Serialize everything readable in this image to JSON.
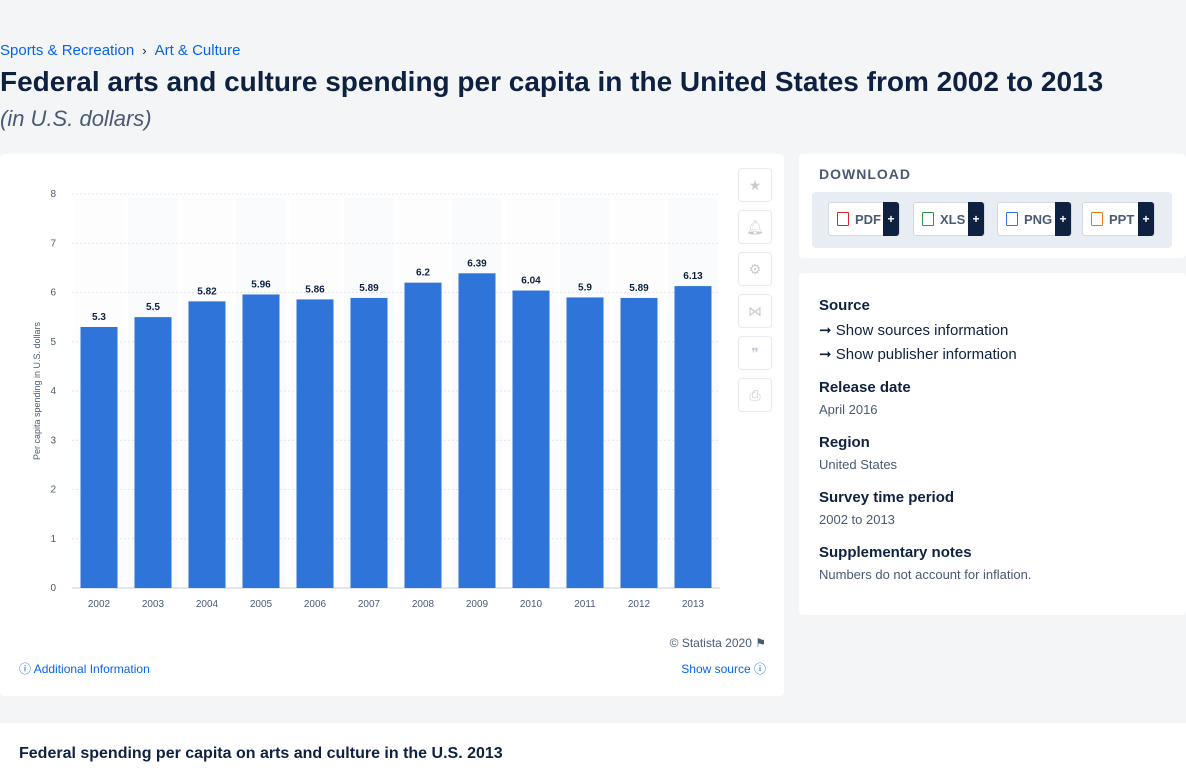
{
  "breadcrumb": [
    "Sports & Recreation",
    "Art & Culture"
  ],
  "title": "Federal arts and culture spending per capita in the United States from 2002 to 2013",
  "subtitle": "(in U.S. dollars)",
  "chart_data": {
    "type": "bar",
    "categories": [
      "2002",
      "2003",
      "2004",
      "2005",
      "2006",
      "2007",
      "2008",
      "2009",
      "2010",
      "2011",
      "2012",
      "2013"
    ],
    "values": [
      5.3,
      5.5,
      5.82,
      5.96,
      5.86,
      5.89,
      6.2,
      6.39,
      6.04,
      5.9,
      5.89,
      6.13
    ],
    "ylabel": "Per capita spending in U.S. dollars",
    "ylim": [
      0,
      8
    ],
    "yticks": [
      0,
      1,
      2,
      3,
      4,
      5,
      6,
      7,
      8
    ],
    "grid": true,
    "bar_color": "#2f74d9"
  },
  "chart_footer": {
    "copyright": "© Statista 2020",
    "additional_info": "Additional Information",
    "show_source": "Show source"
  },
  "download": {
    "title": "DOWNLOAD",
    "buttons": [
      {
        "label": "PDF",
        "color": "#d9262b"
      },
      {
        "label": "XLS",
        "color": "#2a9a45"
      },
      {
        "label": "PNG",
        "color": "#2f74d9"
      },
      {
        "label": "PPT",
        "color": "#e57a1e"
      }
    ]
  },
  "meta": {
    "source_label": "Source",
    "sources_link": "Show sources information",
    "publisher_link": "Show publisher information",
    "release_label": "Release date",
    "release_value": "April 2016",
    "region_label": "Region",
    "region_value": "United States",
    "period_label": "Survey time period",
    "period_value": "2002 to 2013",
    "notes_label": "Supplementary notes",
    "notes_value": "Numbers do not account for inflation."
  },
  "bottom_title": "Federal spending per capita on arts and culture in the U.S. 2013"
}
